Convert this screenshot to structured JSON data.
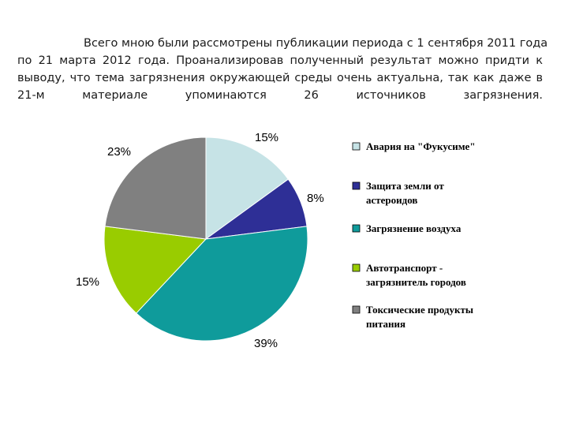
{
  "text": {
    "lines": [
      "Всего мною были рассмотрены публикации периода с 1 сентября 2011 года",
      "по 21 марта 2012 года. Проанализировав полученный результат можно придти к",
      "выводу, что тема загрязнения окружающей среды очень актуальна, так как даже в",
      "21-м материале упоминаются 26 источников загрязнения."
    ]
  },
  "chart_data": {
    "type": "pie",
    "slices": [
      {
        "label": "Авария на \"Фукусиме\"",
        "legend_lines": [
          "Авария на \"Фукусиме\""
        ],
        "value": 15,
        "value_label": "15%",
        "color": "#c6e3e6"
      },
      {
        "label": "Защита земли от астероидов",
        "legend_lines": [
          "Защита земли от",
          "астероидов"
        ],
        "value": 8,
        "value_label": "8%",
        "color": "#2e2f96"
      },
      {
        "label": "Загрязнение воздуха",
        "legend_lines": [
          "Загрязнение воздуха"
        ],
        "value": 39,
        "value_label": "39%",
        "color": "#0f9b9b"
      },
      {
        "label": "Автотранспорт - загрязнитель городов",
        "legend_lines": [
          "Автотранспорт -",
          "загрязнитель городов"
        ],
        "value": 15,
        "value_label": "15%",
        "color": "#99cc00"
      },
      {
        "label": "Токсические продукты питания",
        "legend_lines": [
          "Токсические продукты",
          "питания"
        ],
        "value": 23,
        "value_label": "23%",
        "color": "#808080"
      }
    ],
    "start_angle_deg": 0,
    "direction": "clockwise",
    "legend_position": "right",
    "title": ""
  }
}
